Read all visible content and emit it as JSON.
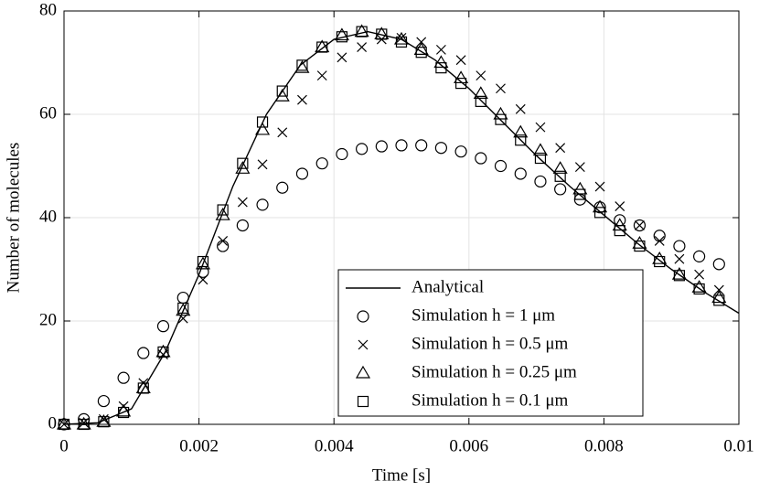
{
  "chart_data": {
    "type": "scatter",
    "xlabel": "Time [s]",
    "ylabel": "Number of molecules",
    "xlim": [
      0,
      0.01
    ],
    "ylim": [
      0,
      80
    ],
    "xticks": [
      0,
      0.002,
      0.004,
      0.006,
      0.008,
      0.01
    ],
    "yticks": [
      0,
      20,
      40,
      60,
      80
    ],
    "grid": true,
    "legend": "lower right",
    "series": [
      {
        "name": "Analytical",
        "marker": "line",
        "color": "#000000",
        "x": [
          0,
          0.0005,
          0.001,
          0.0015,
          0.002,
          0.0025,
          0.003,
          0.0035,
          0.004,
          0.0045,
          0.005,
          0.0055,
          0.006,
          0.0065,
          0.007,
          0.0075,
          0.008,
          0.0085,
          0.009,
          0.0095,
          0.01
        ],
        "values": [
          0,
          0.3,
          3,
          14,
          29,
          46,
          60,
          69.5,
          74.5,
          76,
          74.5,
          70.5,
          65,
          58.5,
          52,
          46,
          40.5,
          35,
          30,
          25.5,
          21.5
        ]
      },
      {
        "name": "Simulation h = 1 μm",
        "marker": "circle",
        "color": "#000000",
        "x": [
          0,
          0.000294,
          0.000588,
          0.000882,
          0.001176,
          0.00147,
          0.001765,
          0.002059,
          0.002353,
          0.002647,
          0.002941,
          0.003235,
          0.003529,
          0.003824,
          0.004118,
          0.004412,
          0.004706,
          0.005,
          0.005294,
          0.005588,
          0.005882,
          0.006176,
          0.00647,
          0.006765,
          0.007059,
          0.007353,
          0.007647,
          0.007941,
          0.008235,
          0.008529,
          0.008824,
          0.009118,
          0.009412,
          0.009706
        ],
        "values": [
          0,
          1,
          4.5,
          9,
          13.8,
          19,
          24.5,
          29.5,
          34.5,
          38.5,
          42.5,
          45.8,
          48.5,
          50.5,
          52.3,
          53.3,
          53.8,
          54,
          54,
          53.5,
          52.8,
          51.5,
          50,
          48.5,
          47,
          45.5,
          43.5,
          42,
          39.5,
          38.5,
          36.5,
          34.5,
          32.5,
          31
        ]
      },
      {
        "name": "Simulation h = 0.5 μm",
        "marker": "x",
        "color": "#000000",
        "x": [
          0,
          0.000294,
          0.000588,
          0.000882,
          0.001176,
          0.00147,
          0.001765,
          0.002059,
          0.002353,
          0.002647,
          0.002941,
          0.003235,
          0.003529,
          0.003824,
          0.004118,
          0.004412,
          0.004706,
          0.005,
          0.005294,
          0.005588,
          0.005882,
          0.006176,
          0.00647,
          0.006765,
          0.007059,
          0.007353,
          0.007647,
          0.007941,
          0.008235,
          0.008529,
          0.008824,
          0.009118,
          0.009412,
          0.009706
        ],
        "values": [
          0,
          0.3,
          1,
          3.5,
          8,
          13.5,
          20.5,
          28,
          35.5,
          43,
          50.3,
          56.5,
          62.8,
          67.5,
          71,
          73,
          74.5,
          74.8,
          74,
          72.5,
          70.5,
          67.5,
          65,
          61,
          57.5,
          53.5,
          49.8,
          46,
          42.2,
          38.5,
          35.5,
          32,
          29,
          26
        ]
      },
      {
        "name": "Simulation h = 0.25 μm",
        "marker": "triangle",
        "color": "#000000",
        "x": [
          0,
          0.000294,
          0.000588,
          0.000882,
          0.001176,
          0.00147,
          0.001765,
          0.002059,
          0.002353,
          0.002647,
          0.002941,
          0.003235,
          0.003529,
          0.003824,
          0.004118,
          0.004412,
          0.004706,
          0.005,
          0.005294,
          0.005588,
          0.005882,
          0.006176,
          0.00647,
          0.006765,
          0.007059,
          0.007353,
          0.007647,
          0.007941,
          0.008235,
          0.008529,
          0.008824,
          0.009118,
          0.009412,
          0.009706
        ],
        "values": [
          0,
          0,
          0.5,
          2.5,
          7,
          14,
          22,
          31,
          40.5,
          49.5,
          57,
          63.5,
          69,
          73,
          75.3,
          76,
          75.5,
          74.5,
          72.5,
          70,
          67,
          64,
          60,
          56.5,
          53,
          49.5,
          45.5,
          42,
          38.5,
          35,
          32,
          29,
          26.5,
          24.5
        ]
      },
      {
        "name": "Simulation h = 0.1 μm",
        "marker": "square",
        "color": "#000000",
        "x": [
          0,
          0.000294,
          0.000588,
          0.000882,
          0.001176,
          0.00147,
          0.001765,
          0.002059,
          0.002353,
          0.002647,
          0.002941,
          0.003235,
          0.003529,
          0.003824,
          0.004118,
          0.004412,
          0.004706,
          0.005,
          0.005294,
          0.005588,
          0.005882,
          0.006176,
          0.00647,
          0.006765,
          0.007059,
          0.007353,
          0.007647,
          0.007941,
          0.008235,
          0.008529,
          0.008824,
          0.009118,
          0.009412,
          0.009706
        ],
        "values": [
          0,
          0,
          0.5,
          2.3,
          7,
          14,
          22.5,
          31.5,
          41.5,
          50.5,
          58.5,
          64.5,
          69.5,
          73,
          75,
          76,
          75.5,
          74,
          72,
          69,
          66,
          62.5,
          59,
          55,
          51.5,
          48,
          44.5,
          41,
          37.5,
          34.5,
          31.5,
          28.8,
          26.2,
          24
        ]
      }
    ]
  }
}
